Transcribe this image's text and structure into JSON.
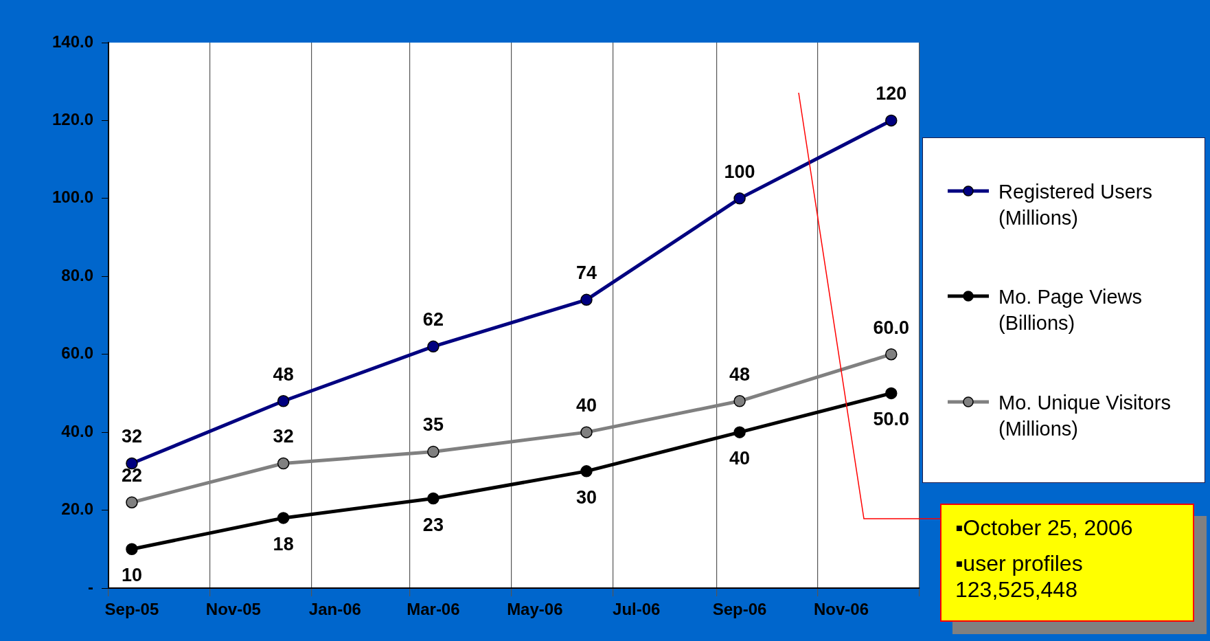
{
  "chart_data": {
    "type": "line",
    "x": [
      "2005-09-15",
      "2005-12-15",
      "2006-03-15",
      "2006-06-15",
      "2006-09-15",
      "2006-12-15"
    ],
    "series": [
      {
        "name": "Registered Users (Millions)",
        "color": "#000080",
        "values": [
          32,
          48,
          62,
          74,
          100,
          120
        ],
        "value_labels": [
          "32",
          "48",
          "62",
          "74",
          "100",
          "120"
        ]
      },
      {
        "name": "Mo. Page Views (Billions)",
        "color": "#000000",
        "values": [
          10,
          18,
          23,
          30,
          40,
          50
        ],
        "value_labels": [
          "10",
          "18",
          "23",
          "30",
          "40",
          "50.0"
        ]
      },
      {
        "name": "Mo. Unique Visitors (Millions)",
        "color": "#808080",
        "values": [
          22,
          32,
          35,
          40,
          48,
          60
        ],
        "value_labels": [
          "22",
          "32",
          "35",
          "40",
          "48",
          "60.0"
        ]
      }
    ],
    "xlim": [
      "2005-09-01",
      "2007-01-01"
    ],
    "xticks": [
      {
        "value": "2005-09-01",
        "label": null
      },
      {
        "value": "2005-09-15",
        "label": "Sep-05"
      },
      {
        "value": "2005-11-01",
        "label": null
      },
      {
        "value": "2005-11-15",
        "label": "Nov-05"
      },
      {
        "value": "2006-01-01",
        "label": null
      },
      {
        "value": "2006-01-15",
        "label": "Jan-06"
      },
      {
        "value": "2006-03-01",
        "label": null
      },
      {
        "value": "2006-03-15",
        "label": "Mar-06"
      },
      {
        "value": "2006-05-01",
        "label": null
      },
      {
        "value": "2006-05-15",
        "label": "May-06"
      },
      {
        "value": "2006-07-01",
        "label": null
      },
      {
        "value": "2006-07-15",
        "label": "Jul-06"
      },
      {
        "value": "2006-09-01",
        "label": null
      },
      {
        "value": "2006-09-15",
        "label": "Sep-06"
      },
      {
        "value": "2006-11-01",
        "label": null
      },
      {
        "value": "2006-11-15",
        "label": "Nov-06"
      },
      {
        "value": "2007-01-01",
        "label": null
      }
    ],
    "ylim": [
      0,
      140
    ],
    "yticks": [
      {
        "value": 0,
        "label": "-"
      },
      {
        "value": 20,
        "label": "20.0"
      },
      {
        "value": 40,
        "label": "40.0"
      },
      {
        "value": 60,
        "label": "60.0"
      },
      {
        "value": 80,
        "label": "80.0"
      },
      {
        "value": 100,
        "label": "100.0"
      },
      {
        "value": 120,
        "label": "120.0"
      },
      {
        "value": 140,
        "label": "140.0"
      }
    ],
    "grid": "x",
    "legend": "right",
    "marker": "circle",
    "line_style": "solid",
    "annotations": [
      "▪October 25, 2006\n▪user profiles 123,525,448"
    ]
  }
}
